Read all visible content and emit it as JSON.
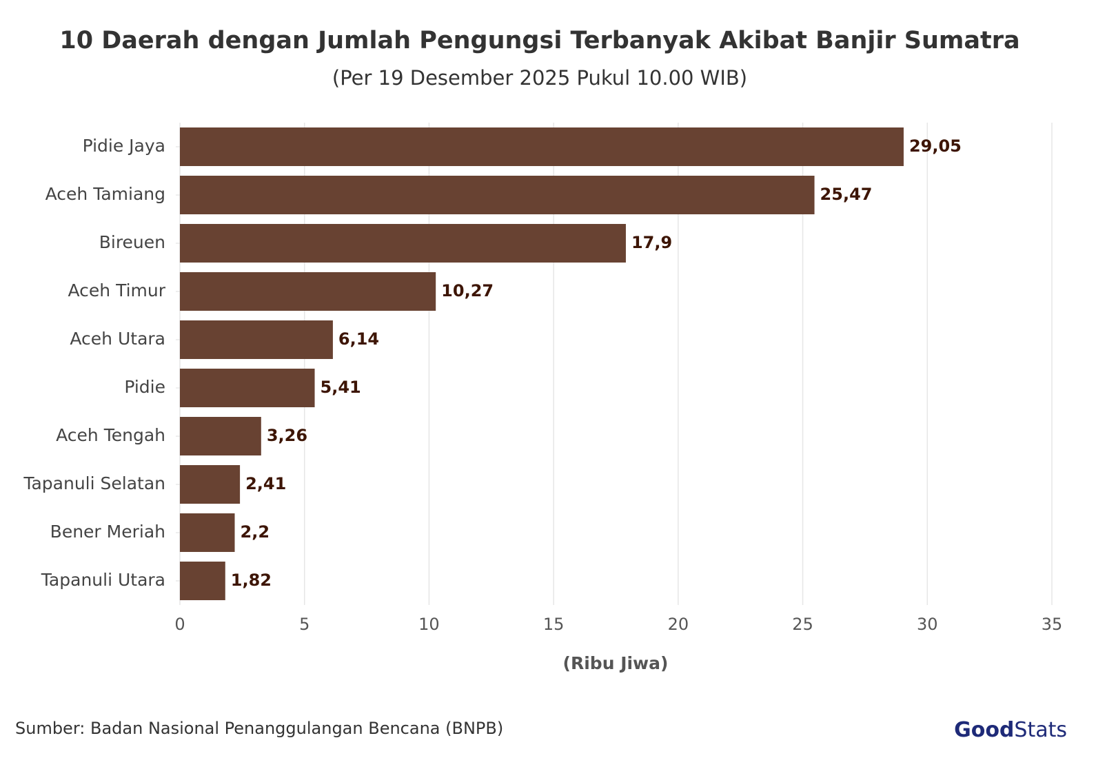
{
  "chart_data": {
    "type": "bar",
    "orientation": "horizontal",
    "title": "10 Daerah dengan Jumlah Pengungsi Terbanyak Akibat Banjir Sumatra",
    "subtitle": "(Per 19 Desember 2025 Pukul 10.00 WIB)",
    "x_label": "(Ribu Jiwa)",
    "categories": [
      "Pidie Jaya",
      "Aceh Tamiang",
      "Bireuen",
      "Aceh Timur",
      "Aceh Utara",
      "Pidie",
      "Aceh Tengah",
      "Tapanuli Selatan",
      "Bener Meriah",
      "Tapanuli Utara"
    ],
    "values": [
      29.05,
      25.47,
      17.9,
      10.27,
      6.14,
      5.41,
      3.26,
      2.41,
      2.2,
      1.82
    ],
    "value_labels": [
      "29,05",
      "25,47",
      "17,9",
      "10,27",
      "6,14",
      "5,41",
      "3,26",
      "2,41",
      "2,2",
      "1,82"
    ],
    "color": "#684232",
    "xlim": [
      0,
      35
    ],
    "xticks": [
      0,
      5,
      10,
      15,
      20,
      25,
      30,
      35
    ],
    "grid": true
  },
  "source": "Sumber: Badan Nasional Penanggulangan Bencana (BNPB)",
  "logo": [
    "Good",
    "Stats"
  ]
}
